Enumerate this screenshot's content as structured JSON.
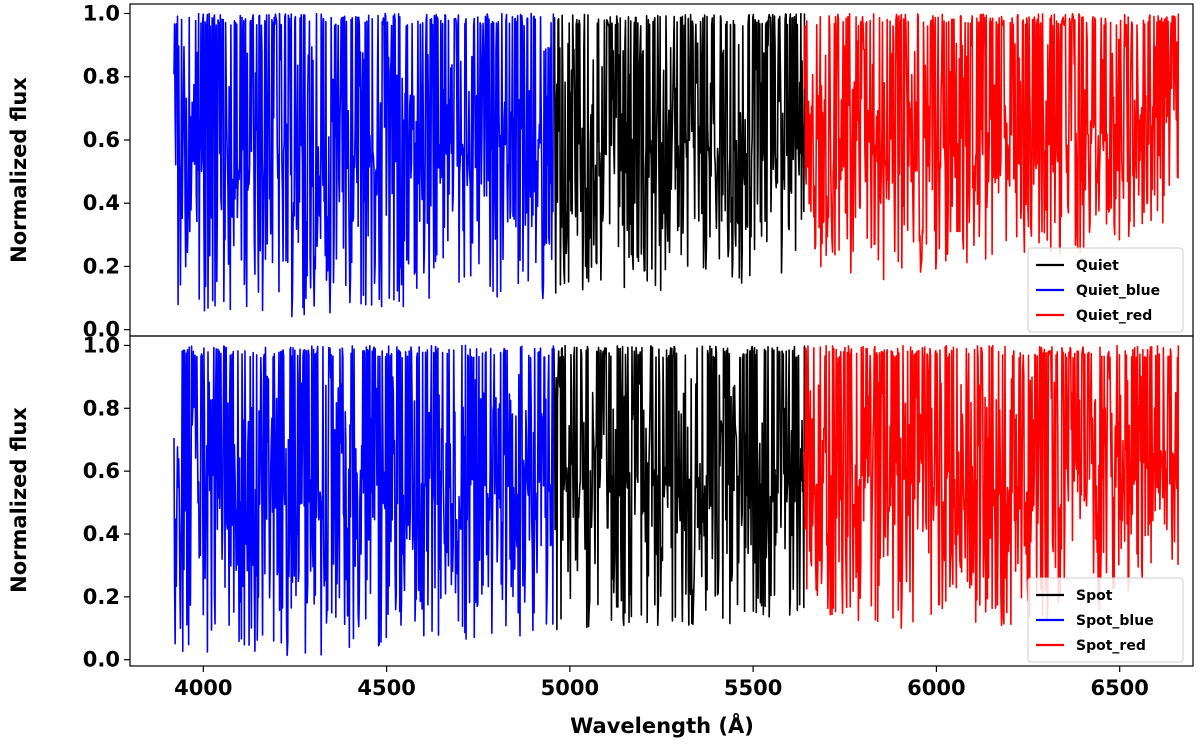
{
  "figure": {
    "xlabel": "Wavelength (Å)",
    "ylabel_top": "Normalized flux",
    "ylabel_bottom": "Normalized flux"
  },
  "chart_data": [
    {
      "type": "line",
      "xlabel": "",
      "ylabel": "Normalized flux",
      "xlim": [
        3800,
        6700
      ],
      "ylim": [
        -0.02,
        1.03
      ],
      "xticks": [
        4000,
        4500,
        5000,
        5500,
        6000,
        6500
      ],
      "yticks": [
        0.0,
        0.2,
        0.4,
        0.6,
        0.8,
        1.0
      ],
      "ytick_labels": [
        "0.0",
        "0.2",
        "0.4",
        "0.6",
        "0.8",
        "1.0"
      ],
      "legend_position": "lower-right",
      "series": [
        {
          "name": "Quiet",
          "color": "#000000",
          "x_range": [
            4955,
            5640
          ],
          "continuum": 1.0,
          "depth_profile": {
            "x": [
              4955,
              5100,
              5300,
              5500,
              5640
            ],
            "y_min": [
              0.1,
              0.13,
              0.12,
              0.15,
              0.2
            ]
          }
        },
        {
          "name": "Quiet_blue",
          "color": "#0000ff",
          "x_range": [
            3920,
            4955
          ],
          "continuum": 1.0,
          "depth_profile": {
            "x": [
              3920,
              4000,
              4300,
              4600,
              4955
            ],
            "y_min": [
              0.05,
              0.04,
              0.04,
              0.08,
              0.1
            ]
          }
        },
        {
          "name": "Quiet_red",
          "color": "#ff0000",
          "x_range": [
            5640,
            6660
          ],
          "continuum": 1.0,
          "depth_profile": {
            "x": [
              5640,
              5900,
              6200,
              6450,
              6660
            ],
            "y_min": [
              0.2,
              0.15,
              0.2,
              0.25,
              0.35
            ]
          }
        }
      ]
    },
    {
      "type": "line",
      "xlabel": "Wavelength (Å)",
      "ylabel": "Normalized flux",
      "xlim": [
        3800,
        6700
      ],
      "ylim": [
        -0.02,
        1.03
      ],
      "xticks": [
        4000,
        4500,
        5000,
        5500,
        6000,
        6500
      ],
      "xtick_labels": [
        "4000",
        "4500",
        "5000",
        "5500",
        "6000",
        "6500"
      ],
      "yticks": [
        0.0,
        0.2,
        0.4,
        0.6,
        0.8,
        1.0
      ],
      "ytick_labels": [
        "0.0",
        "0.2",
        "0.4",
        "0.6",
        "0.8",
        "1.0"
      ],
      "legend_position": "lower-right",
      "series": [
        {
          "name": "Spot",
          "color": "#000000",
          "x_range": [
            4955,
            5640
          ],
          "continuum": 1.0,
          "depth_profile": {
            "x": [
              4955,
              5100,
              5300,
              5500,
              5640
            ],
            "y_min": [
              0.08,
              0.1,
              0.1,
              0.12,
              0.15
            ]
          }
        },
        {
          "name": "Spot_blue",
          "color": "#0000ff",
          "x_range": [
            3920,
            4955
          ],
          "continuum": 1.0,
          "depth_profile": {
            "x": [
              3920,
              4000,
              4300,
              4600,
              4955
            ],
            "y_min": [
              0.03,
              0.02,
              0.01,
              0.05,
              0.08
            ]
          }
        },
        {
          "name": "Spot_red",
          "color": "#ff0000",
          "x_range": [
            5640,
            6660
          ],
          "continuum": 1.0,
          "depth_profile": {
            "x": [
              5640,
              5900,
              6200,
              6450,
              6660
            ],
            "y_min": [
              0.15,
              0.1,
              0.1,
              0.15,
              0.3
            ]
          }
        }
      ]
    }
  ]
}
